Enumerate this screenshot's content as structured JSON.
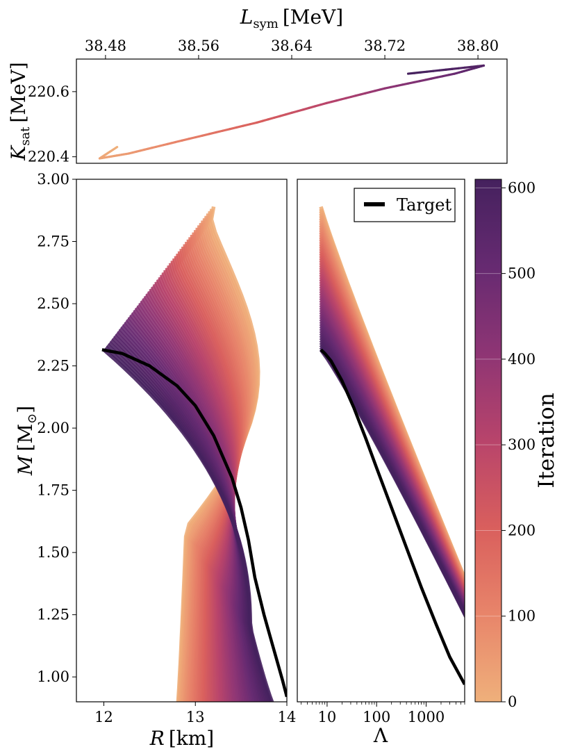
{
  "chart_data": [
    {
      "type": "line",
      "panel": "top",
      "xlabel_main": "L",
      "xlabel_sub": "sym",
      "xlabel_unit": "[MeV]",
      "ylabel_main": "K",
      "ylabel_sub": "sat",
      "ylabel_unit": "[MeV]",
      "xlim": [
        38.455,
        38.825
      ],
      "ylim": [
        220.38,
        220.7
      ],
      "xticks": [
        38.48,
        38.56,
        38.64,
        38.72,
        38.8
      ],
      "xticklabels": [
        "38.48",
        "38.56",
        "38.64",
        "38.72",
        "38.80"
      ],
      "yticks": [
        220.4,
        220.6
      ],
      "yticklabels": [
        "220.4",
        "220.6"
      ],
      "colored_by": "Iteration",
      "trajectory": [
        {
          "iteration": 0,
          "x": 38.49,
          "y": 220.43
        },
        {
          "iteration": 25,
          "x": 38.475,
          "y": 220.395
        },
        {
          "iteration": 50,
          "x": 38.5,
          "y": 220.41
        },
        {
          "iteration": 100,
          "x": 38.54,
          "y": 220.445
        },
        {
          "iteration": 200,
          "x": 38.61,
          "y": 220.505
        },
        {
          "iteration": 300,
          "x": 38.67,
          "y": 220.565
        },
        {
          "iteration": 400,
          "x": 38.72,
          "y": 220.61
        },
        {
          "iteration": 500,
          "x": 38.78,
          "y": 220.655
        },
        {
          "iteration": 560,
          "x": 38.805,
          "y": 220.68
        },
        {
          "iteration": 610,
          "x": 38.74,
          "y": 220.655
        }
      ]
    },
    {
      "type": "line",
      "panel": "mass-radius",
      "xlabel_main": "R",
      "xlabel_unit": "[km]",
      "ylabel_main": "M",
      "ylabel_unit": "[M",
      "ylabel_sun": "⊙",
      "ylabel_close": "]",
      "xlim": [
        11.7,
        14.0
      ],
      "ylim": [
        0.9,
        3.0
      ],
      "xticks": [
        12,
        13,
        14
      ],
      "xticklabels": [
        "12",
        "13",
        "14"
      ],
      "yticks": [
        1.0,
        1.25,
        1.5,
        1.75,
        2.0,
        2.25,
        2.5,
        2.75,
        3.0
      ],
      "yticklabels": [
        "1.00",
        "1.25",
        "1.50",
        "1.75",
        "2.00",
        "2.25",
        "2.50",
        "2.75",
        "3.00"
      ],
      "target": {
        "name": "Target",
        "R": [
          11.98,
          12.2,
          12.5,
          12.8,
          13.0,
          13.2,
          13.4,
          13.5,
          13.58,
          13.65,
          13.75,
          13.85,
          13.95,
          14.0
        ],
        "M": [
          2.315,
          2.3,
          2.25,
          2.17,
          2.09,
          1.97,
          1.8,
          1.68,
          1.55,
          1.4,
          1.25,
          1.12,
          0.99,
          0.92
        ]
      }
    },
    {
      "type": "line",
      "panel": "mass-tidal",
      "xlabel": "Λ",
      "xscale": "log",
      "xlim": [
        2.5,
        6000
      ],
      "ylim": [
        0.9,
        3.0
      ],
      "xticks": [
        10,
        100,
        1000
      ],
      "xticklabels": [
        "10",
        "100",
        "1000"
      ],
      "legend": {
        "label": "Target",
        "position": "upper right"
      },
      "target": {
        "name": "Target",
        "L": [
          7.5,
          9,
          12,
          20,
          35,
          60,
          100,
          200,
          400,
          800,
          1600,
          3000,
          6000
        ],
        "M": [
          2.315,
          2.3,
          2.27,
          2.19,
          2.08,
          1.96,
          1.84,
          1.68,
          1.52,
          1.36,
          1.21,
          1.08,
          0.97
        ]
      }
    },
    {
      "type": "colorbar",
      "label": "Iteration",
      "range": [
        0,
        610
      ],
      "ticks": [
        0,
        100,
        200,
        300,
        400,
        500,
        600
      ],
      "ticklabels": [
        "0",
        "100",
        "200",
        "300",
        "400",
        "500",
        "600"
      ],
      "colormap_stops": [
        "#efb07b",
        "#e8856a",
        "#d95f5d",
        "#b8446b",
        "#8e3574",
        "#662a71",
        "#45215e"
      ]
    }
  ],
  "iterations_total": 610
}
